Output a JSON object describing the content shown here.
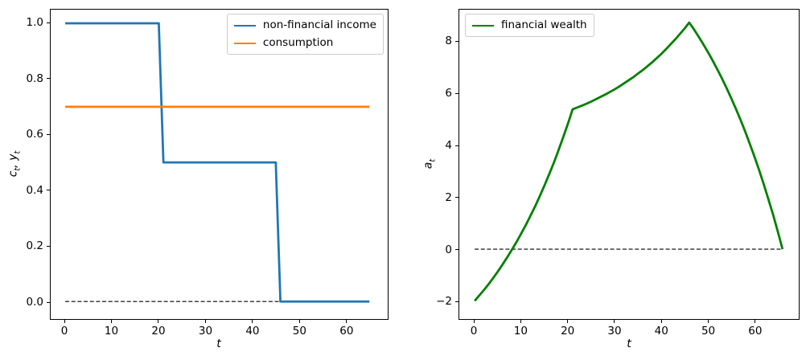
{
  "figure": {
    "background": "#ffffff"
  },
  "chart_data": [
    {
      "type": "line",
      "panel": "left",
      "title": "",
      "xlabel": "t",
      "ylabel": "c_t, y_t",
      "xlim": [
        -3.09,
        68.92
      ],
      "ylim": [
        -0.063,
        1.049
      ],
      "grid": false,
      "xticks": {
        "values": [
          0,
          10,
          20,
          30,
          40,
          50,
          60
        ],
        "labels": [
          "0",
          "10",
          "20",
          "30",
          "40",
          "50",
          "60"
        ]
      },
      "yticks": {
        "values": [
          0.0,
          0.2,
          0.4,
          0.6,
          0.8,
          1.0
        ],
        "labels": [
          "0.0",
          "0.2",
          "0.4",
          "0.6",
          "0.8",
          "1.0"
        ]
      },
      "legend": {
        "position": "upper right",
        "labels": [
          "non-financial income",
          "consumption"
        ]
      },
      "series": [
        {
          "name": "zero line",
          "color": "#000000",
          "line_style": "dashed",
          "line_width": 1.2,
          "show_in_legend": false,
          "points": [
            [
              0,
              0
            ],
            [
              65,
              0
            ]
          ]
        },
        {
          "name": "non-financial income",
          "color": "#1f77b4",
          "line_style": "solid",
          "line_width": 2.8,
          "show_in_legend": true,
          "points": [
            [
              0,
              1.0
            ],
            [
              20,
              1.0
            ],
            [
              21,
              0.5
            ],
            [
              45,
              0.5
            ],
            [
              46,
              0.0
            ],
            [
              65,
              0.0
            ]
          ],
          "note": "step income: 1.0 for t=0..20, 0.5 for t=21..45, 0.0 for t=46..65"
        },
        {
          "name": "consumption",
          "color": "#ff7f0e",
          "line_style": "solid",
          "line_width": 2.8,
          "show_in_legend": true,
          "points": [
            [
              0,
              0.7
            ],
            [
              65,
              0.7
            ]
          ],
          "note": "constant consumption 0.7 for t=0..65"
        }
      ]
    },
    {
      "type": "line",
      "panel": "right",
      "title": "",
      "xlabel": "t",
      "ylabel": "a_t",
      "xlim": [
        -3.27,
        69.46
      ],
      "ylim": [
        -2.7,
        9.25
      ],
      "grid": false,
      "xticks": {
        "values": [
          0,
          10,
          20,
          30,
          40,
          50,
          60
        ],
        "labels": [
          "0",
          "10",
          "20",
          "30",
          "40",
          "50",
          "60"
        ]
      },
      "yticks": {
        "values": [
          -2,
          0,
          2,
          4,
          6,
          8
        ],
        "labels": [
          "−2",
          "0",
          "2",
          "4",
          "6",
          "8"
        ]
      },
      "legend": {
        "position": "upper left",
        "labels": [
          "financial wealth"
        ]
      },
      "series": [
        {
          "name": "zero line",
          "color": "#000000",
          "line_style": "dashed",
          "line_width": 1.2,
          "show_in_legend": false,
          "points": [
            [
              0,
              0
            ],
            [
              66,
              0
            ]
          ]
        },
        {
          "name": "financial wealth",
          "color": "#008000",
          "line_style": "solid",
          "line_width": 2.8,
          "show_in_legend": true,
          "x0": 0,
          "y": [
            -2.0,
            -1.79,
            -1.58,
            -1.35,
            -1.11,
            -0.86,
            -0.59,
            -0.31,
            -0.02,
            0.28,
            0.61,
            0.94,
            1.3,
            1.67,
            2.06,
            2.47,
            2.9,
            3.35,
            3.83,
            4.33,
            4.85,
            5.4,
            5.47,
            5.54,
            5.62,
            5.7,
            5.79,
            5.88,
            5.97,
            6.07,
            6.17,
            6.28,
            6.4,
            6.52,
            6.64,
            6.78,
            6.91,
            7.06,
            7.21,
            7.37,
            7.54,
            7.72,
            7.91,
            8.1,
            8.31,
            8.52,
            8.75,
            8.49,
            8.21,
            7.92,
            7.61,
            7.29,
            6.95,
            6.6,
            6.22,
            5.83,
            5.42,
            4.99,
            4.54,
            4.06,
            3.56,
            3.04,
            2.49,
            1.91,
            1.31,
            0.67,
            0.0
          ],
          "note": "wealth rises from -2 at t=0, kink at t=21 (5.4), peak 8.75 at t=46, returns to 0 at t=66"
        }
      ]
    }
  ]
}
